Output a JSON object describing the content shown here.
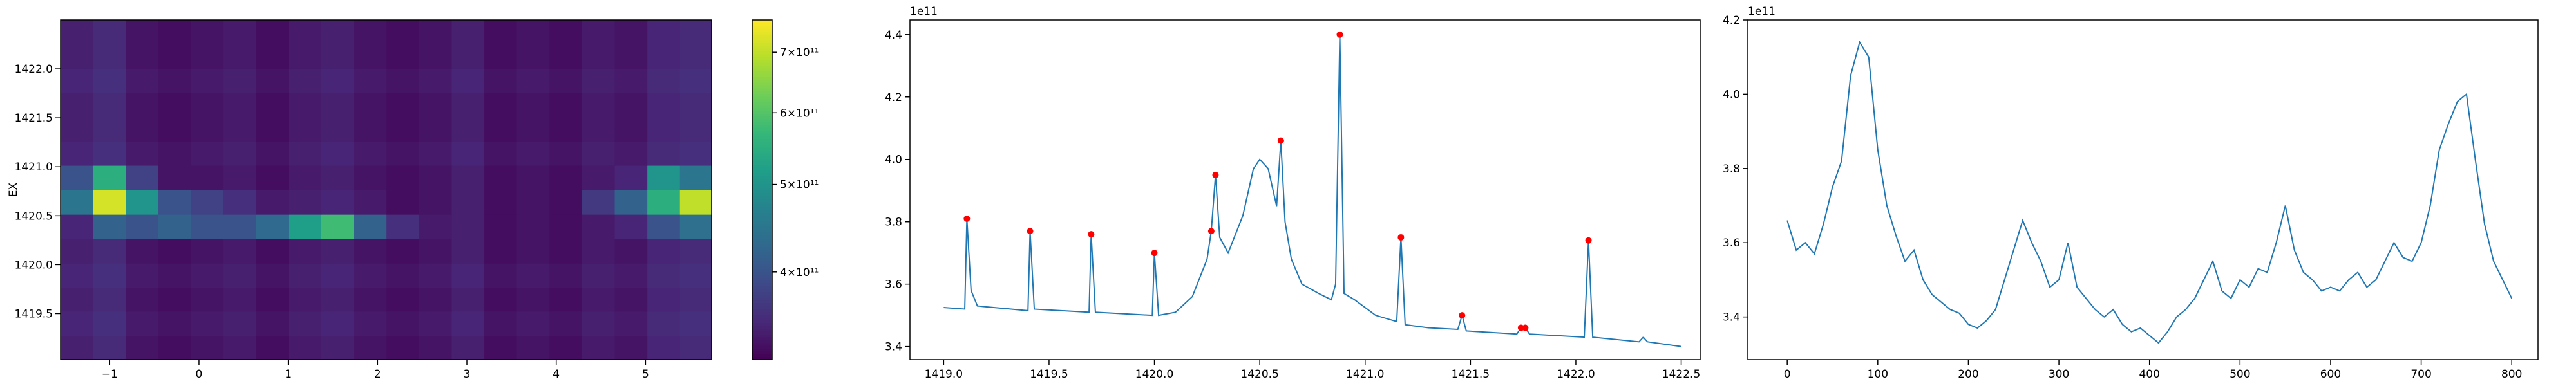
{
  "chart_data": [
    {
      "type": "heatmap",
      "ylabel": "EX",
      "xlim": [
        -1.55,
        5.74
      ],
      "ylim": [
        1419.03,
        1422.5
      ],
      "xticks": [
        {
          "value": -1,
          "label": "−1"
        },
        0,
        1,
        2,
        3,
        4,
        5
      ],
      "yticks": [
        1419.5,
        {
          "value": 1420,
          "label": "1420.0"
        },
        1420.5,
        {
          "value": 1421,
          "label": "1421.0"
        },
        1421.5,
        {
          "value": 1422,
          "label": "1422.0"
        }
      ],
      "x": [
        -1.37,
        -1.0,
        -0.64,
        -0.27,
        0.09,
        0.46,
        0.82,
        1.19,
        1.55,
        1.92,
        2.28,
        2.65,
        3.01,
        3.38,
        3.74,
        4.11,
        4.47,
        4.84,
        5.2,
        5.57
      ],
      "y": [
        1419.15,
        1419.4,
        1419.65,
        1419.89,
        1420.14,
        1420.39,
        1420.64,
        1420.89,
        1421.14,
        1421.38,
        1421.63,
        1421.88,
        1422.13,
        1422.38
      ],
      "z": [
        [
          345000000000.0,
          355000000000.0,
          335000000000.0,
          330000000000.0,
          335000000000.0,
          340000000000.0,
          330000000000.0,
          340000000000.0,
          345000000000.0,
          335000000000.0,
          330000000000.0,
          335000000000.0,
          345000000000.0,
          330000000000.0,
          335000000000.0,
          330000000000.0,
          340000000000.0,
          335000000000.0,
          350000000000.0,
          355000000000.0
        ],
        [
          350000000000.0,
          360000000000.0,
          340000000000.0,
          335000000000.0,
          340000000000.0,
          345000000000.0,
          335000000000.0,
          345000000000.0,
          350000000000.0,
          340000000000.0,
          335000000000.0,
          340000000000.0,
          350000000000.0,
          335000000000.0,
          340000000000.0,
          335000000000.0,
          345000000000.0,
          340000000000.0,
          355000000000.0,
          360000000000.0
        ],
        [
          345000000000.0,
          355000000000.0,
          335000000000.0,
          330000000000.0,
          335000000000.0,
          340000000000.0,
          330000000000.0,
          340000000000.0,
          345000000000.0,
          335000000000.0,
          330000000000.0,
          335000000000.0,
          345000000000.0,
          330000000000.0,
          335000000000.0,
          330000000000.0,
          340000000000.0,
          335000000000.0,
          350000000000.0,
          355000000000.0
        ],
        [
          350000000000.0,
          360000000000.0,
          340000000000.0,
          335000000000.0,
          340000000000.0,
          345000000000.0,
          335000000000.0,
          345000000000.0,
          350000000000.0,
          340000000000.0,
          335000000000.0,
          340000000000.0,
          350000000000.0,
          335000000000.0,
          340000000000.0,
          335000000000.0,
          345000000000.0,
          340000000000.0,
          355000000000.0,
          360000000000.0
        ],
        [
          345000000000.0,
          355000000000.0,
          335000000000.0,
          330000000000.0,
          335000000000.0,
          340000000000.0,
          330000000000.0,
          340000000000.0,
          345000000000.0,
          335000000000.0,
          330000000000.0,
          335000000000.0,
          345000000000.0,
          330000000000.0,
          335000000000.0,
          330000000000.0,
          340000000000.0,
          335000000000.0,
          350000000000.0,
          355000000000.0
        ],
        [
          350000000000.0,
          420000000000.0,
          400000000000.0,
          420000000000.0,
          400000000000.0,
          400000000000.0,
          430000000000.0,
          520000000000.0,
          580000000000.0,
          420000000000.0,
          360000000000.0,
          340000000000.0,
          345000000000.0,
          330000000000.0,
          335000000000.0,
          330000000000.0,
          340000000000.0,
          350000000000.0,
          400000000000.0,
          440000000000.0
        ],
        [
          450000000000.0,
          720000000000.0,
          500000000000.0,
          400000000000.0,
          380000000000.0,
          360000000000.0,
          340000000000.0,
          345000000000.0,
          350000000000.0,
          340000000000.0,
          330000000000.0,
          335000000000.0,
          345000000000.0,
          330000000000.0,
          335000000000.0,
          330000000000.0,
          370000000000.0,
          420000000000.0,
          550000000000.0,
          700000000000.0
        ],
        [
          400000000000.0,
          550000000000.0,
          380000000000.0,
          335000000000.0,
          335000000000.0,
          340000000000.0,
          330000000000.0,
          340000000000.0,
          345000000000.0,
          335000000000.0,
          330000000000.0,
          335000000000.0,
          345000000000.0,
          330000000000.0,
          335000000000.0,
          330000000000.0,
          340000000000.0,
          350000000000.0,
          500000000000.0,
          450000000000.0
        ],
        [
          350000000000.0,
          360000000000.0,
          340000000000.0,
          335000000000.0,
          340000000000.0,
          345000000000.0,
          335000000000.0,
          345000000000.0,
          350000000000.0,
          340000000000.0,
          335000000000.0,
          340000000000.0,
          350000000000.0,
          335000000000.0,
          340000000000.0,
          335000000000.0,
          345000000000.0,
          340000000000.0,
          355000000000.0,
          360000000000.0
        ],
        [
          345000000000.0,
          355000000000.0,
          335000000000.0,
          330000000000.0,
          335000000000.0,
          340000000000.0,
          330000000000.0,
          340000000000.0,
          345000000000.0,
          335000000000.0,
          330000000000.0,
          335000000000.0,
          345000000000.0,
          330000000000.0,
          335000000000.0,
          330000000000.0,
          340000000000.0,
          335000000000.0,
          350000000000.0,
          355000000000.0
        ],
        [
          345000000000.0,
          355000000000.0,
          335000000000.0,
          330000000000.0,
          335000000000.0,
          340000000000.0,
          330000000000.0,
          340000000000.0,
          345000000000.0,
          335000000000.0,
          330000000000.0,
          335000000000.0,
          345000000000.0,
          330000000000.0,
          335000000000.0,
          330000000000.0,
          340000000000.0,
          335000000000.0,
          350000000000.0,
          355000000000.0
        ],
        [
          350000000000.0,
          360000000000.0,
          340000000000.0,
          335000000000.0,
          340000000000.0,
          345000000000.0,
          335000000000.0,
          345000000000.0,
          350000000000.0,
          340000000000.0,
          335000000000.0,
          340000000000.0,
          350000000000.0,
          335000000000.0,
          340000000000.0,
          335000000000.0,
          345000000000.0,
          340000000000.0,
          355000000000.0,
          360000000000.0
        ],
        [
          345000000000.0,
          355000000000.0,
          335000000000.0,
          330000000000.0,
          335000000000.0,
          340000000000.0,
          330000000000.0,
          340000000000.0,
          345000000000.0,
          335000000000.0,
          330000000000.0,
          335000000000.0,
          345000000000.0,
          330000000000.0,
          335000000000.0,
          330000000000.0,
          340000000000.0,
          335000000000.0,
          350000000000.0,
          355000000000.0
        ],
        [
          345000000000.0,
          355000000000.0,
          335000000000.0,
          330000000000.0,
          335000000000.0,
          340000000000.0,
          330000000000.0,
          340000000000.0,
          345000000000.0,
          335000000000.0,
          330000000000.0,
          335000000000.0,
          345000000000.0,
          330000000000.0,
          335000000000.0,
          330000000000.0,
          340000000000.0,
          335000000000.0,
          350000000000.0,
          355000000000.0
        ]
      ],
      "colorbar": {
        "log": true,
        "colormap": "viridis",
        "lim": [
          320000000000.0,
          760000000000.0
        ],
        "ticks": [
          {
            "value": 400000000000.0,
            "label": "4×10¹¹"
          },
          {
            "value": 500000000000.0,
            "label": "5×10¹¹"
          },
          {
            "value": 600000000000.0,
            "label": "6×10¹¹"
          },
          {
            "value": 700000000000.0,
            "label": "7×10¹¹"
          }
        ]
      }
    },
    {
      "type": "line",
      "offset_text": "1e11",
      "xlim": [
        1418.84,
        1422.59
      ],
      "ylim": [
        3.358,
        4.447
      ],
      "xticks": [
        {
          "value": 1419,
          "label": "1419.0"
        },
        1419.5,
        {
          "value": 1420,
          "label": "1420.0"
        },
        1420.5,
        {
          "value": 1421,
          "label": "1421.0"
        },
        1421.5,
        {
          "value": 1422,
          "label": "1422.0"
        },
        1422.5
      ],
      "yticks": [
        3.4,
        3.6,
        3.8,
        {
          "value": 4,
          "label": "4.0"
        },
        4.2,
        4.4
      ],
      "series": [
        {
          "color": "#1f77b4",
          "x": [
            1419.0,
            1419.1,
            1419.11,
            1419.13,
            1419.16,
            1419.4,
            1419.41,
            1419.43,
            1419.69,
            1419.7,
            1419.72,
            1419.99,
            1420.0,
            1420.02,
            1420.1,
            1420.18,
            1420.25,
            1420.27,
            1420.29,
            1420.31,
            1420.35,
            1420.42,
            1420.47,
            1420.5,
            1420.54,
            1420.58,
            1420.6,
            1420.62,
            1420.65,
            1420.7,
            1420.78,
            1420.84,
            1420.86,
            1420.88,
            1420.9,
            1420.95,
            1421.05,
            1421.15,
            1421.17,
            1421.19,
            1421.3,
            1421.44,
            1421.46,
            1421.48,
            1421.72,
            1421.74,
            1421.76,
            1421.78,
            1422.04,
            1422.06,
            1422.08,
            1422.3,
            1422.32,
            1422.34,
            1422.5
          ],
          "values": [
            3.525,
            3.52,
            3.81,
            3.58,
            3.53,
            3.515,
            3.77,
            3.52,
            3.51,
            3.76,
            3.51,
            3.5,
            3.7,
            3.5,
            3.51,
            3.56,
            3.68,
            3.77,
            3.95,
            3.75,
            3.7,
            3.82,
            3.97,
            4.0,
            3.97,
            3.85,
            4.06,
            3.8,
            3.68,
            3.6,
            3.57,
            3.55,
            3.6,
            4.4,
            3.57,
            3.55,
            3.5,
            3.48,
            3.75,
            3.47,
            3.46,
            3.455,
            3.5,
            3.45,
            3.44,
            3.46,
            3.46,
            3.44,
            3.43,
            3.74,
            3.43,
            3.415,
            3.43,
            3.415,
            3.4
          ]
        },
        {
          "color": "red",
          "style": "markers",
          "x": [
            1419.11,
            1419.41,
            1419.7,
            1420.0,
            1420.27,
            1420.29,
            1420.6,
            1420.88,
            1421.17,
            1421.46,
            1421.74,
            1421.76,
            1422.06
          ],
          "values": [
            3.81,
            3.77,
            3.76,
            3.7,
            3.77,
            3.95,
            4.06,
            4.4,
            3.75,
            3.5,
            3.46,
            3.46,
            3.74
          ]
        }
      ]
    },
    {
      "type": "line",
      "offset_text": "1e11",
      "xlim": [
        -43.5,
        829
      ],
      "ylim": [
        3.285,
        4.2
      ],
      "xticks": [
        0,
        100,
        200,
        300,
        400,
        500,
        600,
        700,
        800
      ],
      "yticks": [
        3.4,
        3.6,
        3.8,
        {
          "value": 4,
          "label": "4.0"
        },
        4.2
      ],
      "series": [
        {
          "color": "#1f77b4",
          "x": [
            0,
            10,
            20,
            30,
            40,
            50,
            60,
            70,
            80,
            90,
            100,
            110,
            120,
            130,
            140,
            150,
            160,
            170,
            180,
            190,
            200,
            210,
            220,
            230,
            240,
            250,
            260,
            270,
            280,
            290,
            300,
            310,
            320,
            330,
            340,
            350,
            360,
            370,
            380,
            390,
            400,
            410,
            420,
            430,
            440,
            450,
            460,
            470,
            480,
            490,
            500,
            510,
            520,
            530,
            540,
            550,
            560,
            570,
            580,
            590,
            600,
            610,
            620,
            630,
            640,
            650,
            660,
            670,
            680,
            690,
            700,
            710,
            720,
            730,
            740,
            750,
            760,
            770,
            780,
            790,
            800
          ],
          "values": [
            3.66,
            3.58,
            3.6,
            3.57,
            3.65,
            3.75,
            3.82,
            4.05,
            4.14,
            4.1,
            3.85,
            3.7,
            3.62,
            3.55,
            3.58,
            3.5,
            3.46,
            3.44,
            3.42,
            3.41,
            3.38,
            3.37,
            3.39,
            3.42,
            3.5,
            3.58,
            3.66,
            3.6,
            3.55,
            3.48,
            3.5,
            3.6,
            3.48,
            3.45,
            3.42,
            3.4,
            3.42,
            3.38,
            3.36,
            3.37,
            3.35,
            3.33,
            3.36,
            3.4,
            3.42,
            3.45,
            3.5,
            3.55,
            3.47,
            3.45,
            3.5,
            3.48,
            3.53,
            3.52,
            3.6,
            3.7,
            3.58,
            3.52,
            3.5,
            3.47,
            3.48,
            3.47,
            3.5,
            3.52,
            3.48,
            3.5,
            3.55,
            3.6,
            3.56,
            3.55,
            3.6,
            3.7,
            3.85,
            3.92,
            3.98,
            4.0,
            3.82,
            3.65,
            3.55,
            3.5,
            3.45
          ]
        }
      ]
    }
  ]
}
